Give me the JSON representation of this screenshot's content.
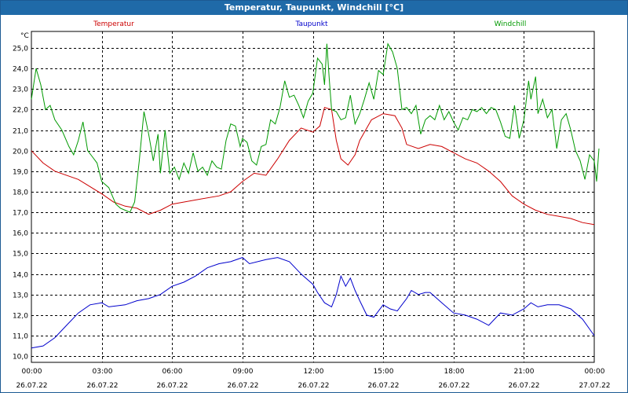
{
  "window": {
    "title": "Temperatur, Taupunkt, Windchill [°C]"
  },
  "chart_data": {
    "type": "line",
    "title": "Temperatur, Taupunkt, Windchill [°C]",
    "ylabel": "°C",
    "ylim": [
      9.7,
      25.8
    ],
    "yticks": [
      "25,0",
      "24,0",
      "23,0",
      "22,0",
      "21,0",
      "20,0",
      "19,0",
      "18,0",
      "17,0",
      "16,0",
      "15,0",
      "14,0",
      "13,0",
      "12,0",
      "11,0",
      "10,0"
    ],
    "xlim": [
      0,
      24
    ],
    "xticks": [
      {
        "time": "00:00",
        "date": "26.07.22"
      },
      {
        "time": "03:00",
        "date": "26.07.22"
      },
      {
        "time": "06:00",
        "date": "26.07.22"
      },
      {
        "time": "09:00",
        "date": "26.07.22"
      },
      {
        "time": "12:00",
        "date": "26.07.22"
      },
      {
        "time": "15:00",
        "date": "26.07.22"
      },
      {
        "time": "18:00",
        "date": "26.07.22"
      },
      {
        "time": "21:00",
        "date": "26.07.22"
      },
      {
        "time": "00:00",
        "date": "27.07.22"
      }
    ],
    "grid": true,
    "legend_placement": "top",
    "series": [
      {
        "name": "Temperatur",
        "color": "#cc0000",
        "points": [
          [
            0,
            20.0
          ],
          [
            0.5,
            19.4
          ],
          [
            1,
            19.0
          ],
          [
            2,
            18.6
          ],
          [
            3,
            17.9
          ],
          [
            3.5,
            17.5
          ],
          [
            4,
            17.3
          ],
          [
            4.5,
            17.2
          ],
          [
            5,
            16.9
          ],
          [
            5.5,
            17.1
          ],
          [
            6,
            17.4
          ],
          [
            7,
            17.6
          ],
          [
            8,
            17.8
          ],
          [
            8.5,
            18.0
          ],
          [
            9,
            18.5
          ],
          [
            9.5,
            18.9
          ],
          [
            10,
            18.8
          ],
          [
            10.5,
            19.6
          ],
          [
            11,
            20.5
          ],
          [
            11.5,
            21.1
          ],
          [
            12,
            20.9
          ],
          [
            12.3,
            21.2
          ],
          [
            12.5,
            22.1
          ],
          [
            12.8,
            22.0
          ],
          [
            13,
            20.5
          ],
          [
            13.2,
            19.6
          ],
          [
            13.5,
            19.3
          ],
          [
            13.8,
            19.8
          ],
          [
            14,
            20.5
          ],
          [
            14.5,
            21.5
          ],
          [
            15,
            21.8
          ],
          [
            15.5,
            21.7
          ],
          [
            15.8,
            21.1
          ],
          [
            16,
            20.3
          ],
          [
            16.5,
            20.1
          ],
          [
            17,
            20.3
          ],
          [
            17.5,
            20.2
          ],
          [
            18,
            19.9
          ],
          [
            18.5,
            19.6
          ],
          [
            19,
            19.4
          ],
          [
            19.5,
            19.0
          ],
          [
            20,
            18.5
          ],
          [
            20.5,
            17.8
          ],
          [
            21,
            17.4
          ],
          [
            21.5,
            17.1
          ],
          [
            22,
            16.9
          ],
          [
            22.5,
            16.8
          ],
          [
            23,
            16.7
          ],
          [
            23.5,
            16.5
          ],
          [
            24,
            16.4
          ]
        ]
      },
      {
        "name": "Taupunkt",
        "color": "#0000cc",
        "points": [
          [
            0,
            10.4
          ],
          [
            0.5,
            10.5
          ],
          [
            1,
            10.9
          ],
          [
            1.5,
            11.5
          ],
          [
            2,
            12.1
          ],
          [
            2.5,
            12.5
          ],
          [
            3,
            12.6
          ],
          [
            3.3,
            12.4
          ],
          [
            4,
            12.5
          ],
          [
            4.5,
            12.7
          ],
          [
            5,
            12.8
          ],
          [
            5.5,
            13.0
          ],
          [
            6,
            13.4
          ],
          [
            6.5,
            13.6
          ],
          [
            7,
            13.9
          ],
          [
            7.5,
            14.3
          ],
          [
            8,
            14.5
          ],
          [
            8.5,
            14.6
          ],
          [
            9,
            14.8
          ],
          [
            9.3,
            14.5
          ],
          [
            10,
            14.7
          ],
          [
            10.5,
            14.8
          ],
          [
            11,
            14.6
          ],
          [
            11.5,
            14.0
          ],
          [
            12,
            13.5
          ],
          [
            12.2,
            13.1
          ],
          [
            12.5,
            12.6
          ],
          [
            12.8,
            12.4
          ],
          [
            13,
            13.0
          ],
          [
            13.2,
            13.9
          ],
          [
            13.4,
            13.4
          ],
          [
            13.6,
            13.8
          ],
          [
            13.8,
            13.2
          ],
          [
            14,
            12.7
          ],
          [
            14.3,
            12.0
          ],
          [
            14.6,
            11.9
          ],
          [
            15,
            12.5
          ],
          [
            15.3,
            12.3
          ],
          [
            15.6,
            12.2
          ],
          [
            16,
            12.8
          ],
          [
            16.2,
            13.2
          ],
          [
            16.5,
            13.0
          ],
          [
            16.8,
            13.1
          ],
          [
            17,
            13.1
          ],
          [
            17.5,
            12.6
          ],
          [
            18,
            12.1
          ],
          [
            18.5,
            12.0
          ],
          [
            19,
            11.8
          ],
          [
            19.5,
            11.5
          ],
          [
            20,
            12.1
          ],
          [
            20.5,
            12.0
          ],
          [
            21,
            12.3
          ],
          [
            21.3,
            12.6
          ],
          [
            21.6,
            12.4
          ],
          [
            22,
            12.5
          ],
          [
            22.5,
            12.5
          ],
          [
            23,
            12.3
          ],
          [
            23.5,
            11.8
          ],
          [
            24,
            11.0
          ]
        ]
      },
      {
        "name": "Windchill",
        "color": "#009900",
        "points": [
          [
            0,
            22.5
          ],
          [
            0.2,
            24.0
          ],
          [
            0.4,
            23.2
          ],
          [
            0.6,
            22.0
          ],
          [
            0.8,
            22.2
          ],
          [
            1,
            21.5
          ],
          [
            1.3,
            21.0
          ],
          [
            1.6,
            20.2
          ],
          [
            1.8,
            19.8
          ],
          [
            2,
            20.5
          ],
          [
            2.2,
            21.4
          ],
          [
            2.4,
            20.0
          ],
          [
            2.6,
            19.7
          ],
          [
            2.8,
            19.4
          ],
          [
            3,
            18.5
          ],
          [
            3.3,
            18.2
          ],
          [
            3.6,
            17.4
          ],
          [
            3.8,
            17.2
          ],
          [
            4,
            17.1
          ],
          [
            4.2,
            17.0
          ],
          [
            4.4,
            17.5
          ],
          [
            4.6,
            19.5
          ],
          [
            4.8,
            21.9
          ],
          [
            5,
            20.8
          ],
          [
            5.2,
            19.5
          ],
          [
            5.4,
            20.8
          ],
          [
            5.5,
            18.9
          ],
          [
            5.7,
            21.0
          ],
          [
            5.9,
            18.9
          ],
          [
            6.1,
            19.2
          ],
          [
            6.3,
            18.6
          ],
          [
            6.5,
            19.4
          ],
          [
            6.7,
            18.9
          ],
          [
            6.9,
            19.9
          ],
          [
            7.1,
            19.0
          ],
          [
            7.3,
            19.2
          ],
          [
            7.5,
            18.8
          ],
          [
            7.7,
            19.5
          ],
          [
            7.9,
            19.2
          ],
          [
            8.1,
            19.1
          ],
          [
            8.3,
            20.5
          ],
          [
            8.5,
            21.3
          ],
          [
            8.7,
            21.2
          ],
          [
            8.9,
            20.2
          ],
          [
            9,
            20.6
          ],
          [
            9.2,
            20.4
          ],
          [
            9.4,
            19.5
          ],
          [
            9.6,
            19.3
          ],
          [
            9.8,
            20.2
          ],
          [
            10,
            20.3
          ],
          [
            10.2,
            21.5
          ],
          [
            10.4,
            21.3
          ],
          [
            10.6,
            22.1
          ],
          [
            10.8,
            23.4
          ],
          [
            11,
            22.6
          ],
          [
            11.2,
            22.7
          ],
          [
            11.4,
            22.2
          ],
          [
            11.6,
            21.6
          ],
          [
            11.8,
            22.4
          ],
          [
            12,
            22.8
          ],
          [
            12.2,
            24.5
          ],
          [
            12.4,
            24.2
          ],
          [
            12.5,
            23.2
          ],
          [
            12.6,
            25.2
          ],
          [
            12.7,
            23.5
          ],
          [
            12.8,
            22.0
          ],
          [
            13,
            21.9
          ],
          [
            13.2,
            21.5
          ],
          [
            13.4,
            21.6
          ],
          [
            13.6,
            22.7
          ],
          [
            13.8,
            21.3
          ],
          [
            14,
            21.8
          ],
          [
            14.2,
            22.5
          ],
          [
            14.4,
            23.3
          ],
          [
            14.6,
            22.5
          ],
          [
            14.8,
            23.9
          ],
          [
            15,
            23.7
          ],
          [
            15.2,
            25.2
          ],
          [
            15.4,
            24.8
          ],
          [
            15.6,
            24.0
          ],
          [
            15.8,
            22.0
          ],
          [
            16,
            22.1
          ],
          [
            16.2,
            21.8
          ],
          [
            16.4,
            22.2
          ],
          [
            16.6,
            20.8
          ],
          [
            16.8,
            21.5
          ],
          [
            17,
            21.7
          ],
          [
            17.2,
            21.5
          ],
          [
            17.4,
            22.2
          ],
          [
            17.6,
            21.5
          ],
          [
            17.8,
            21.9
          ],
          [
            18,
            21.4
          ],
          [
            18.2,
            21.0
          ],
          [
            18.4,
            21.6
          ],
          [
            18.6,
            21.5
          ],
          [
            18.8,
            22.0
          ],
          [
            19,
            21.9
          ],
          [
            19.2,
            22.1
          ],
          [
            19.4,
            21.8
          ],
          [
            19.6,
            22.1
          ],
          [
            19.8,
            22.0
          ],
          [
            20,
            21.4
          ],
          [
            20.2,
            20.7
          ],
          [
            20.4,
            20.6
          ],
          [
            20.6,
            22.2
          ],
          [
            20.8,
            20.6
          ],
          [
            21,
            21.5
          ],
          [
            21.2,
            23.4
          ],
          [
            21.3,
            22.5
          ],
          [
            21.5,
            23.6
          ],
          [
            21.6,
            21.8
          ],
          [
            21.8,
            22.5
          ],
          [
            22,
            21.6
          ],
          [
            22.2,
            22.0
          ],
          [
            22.4,
            20.1
          ],
          [
            22.6,
            21.5
          ],
          [
            22.8,
            21.8
          ],
          [
            23,
            21.0
          ],
          [
            23.2,
            20.0
          ],
          [
            23.4,
            19.5
          ],
          [
            23.6,
            18.6
          ],
          [
            23.8,
            19.8
          ],
          [
            24,
            19.5
          ],
          [
            24.1,
            18.5
          ],
          [
            24.2,
            20.1
          ]
        ]
      }
    ]
  }
}
